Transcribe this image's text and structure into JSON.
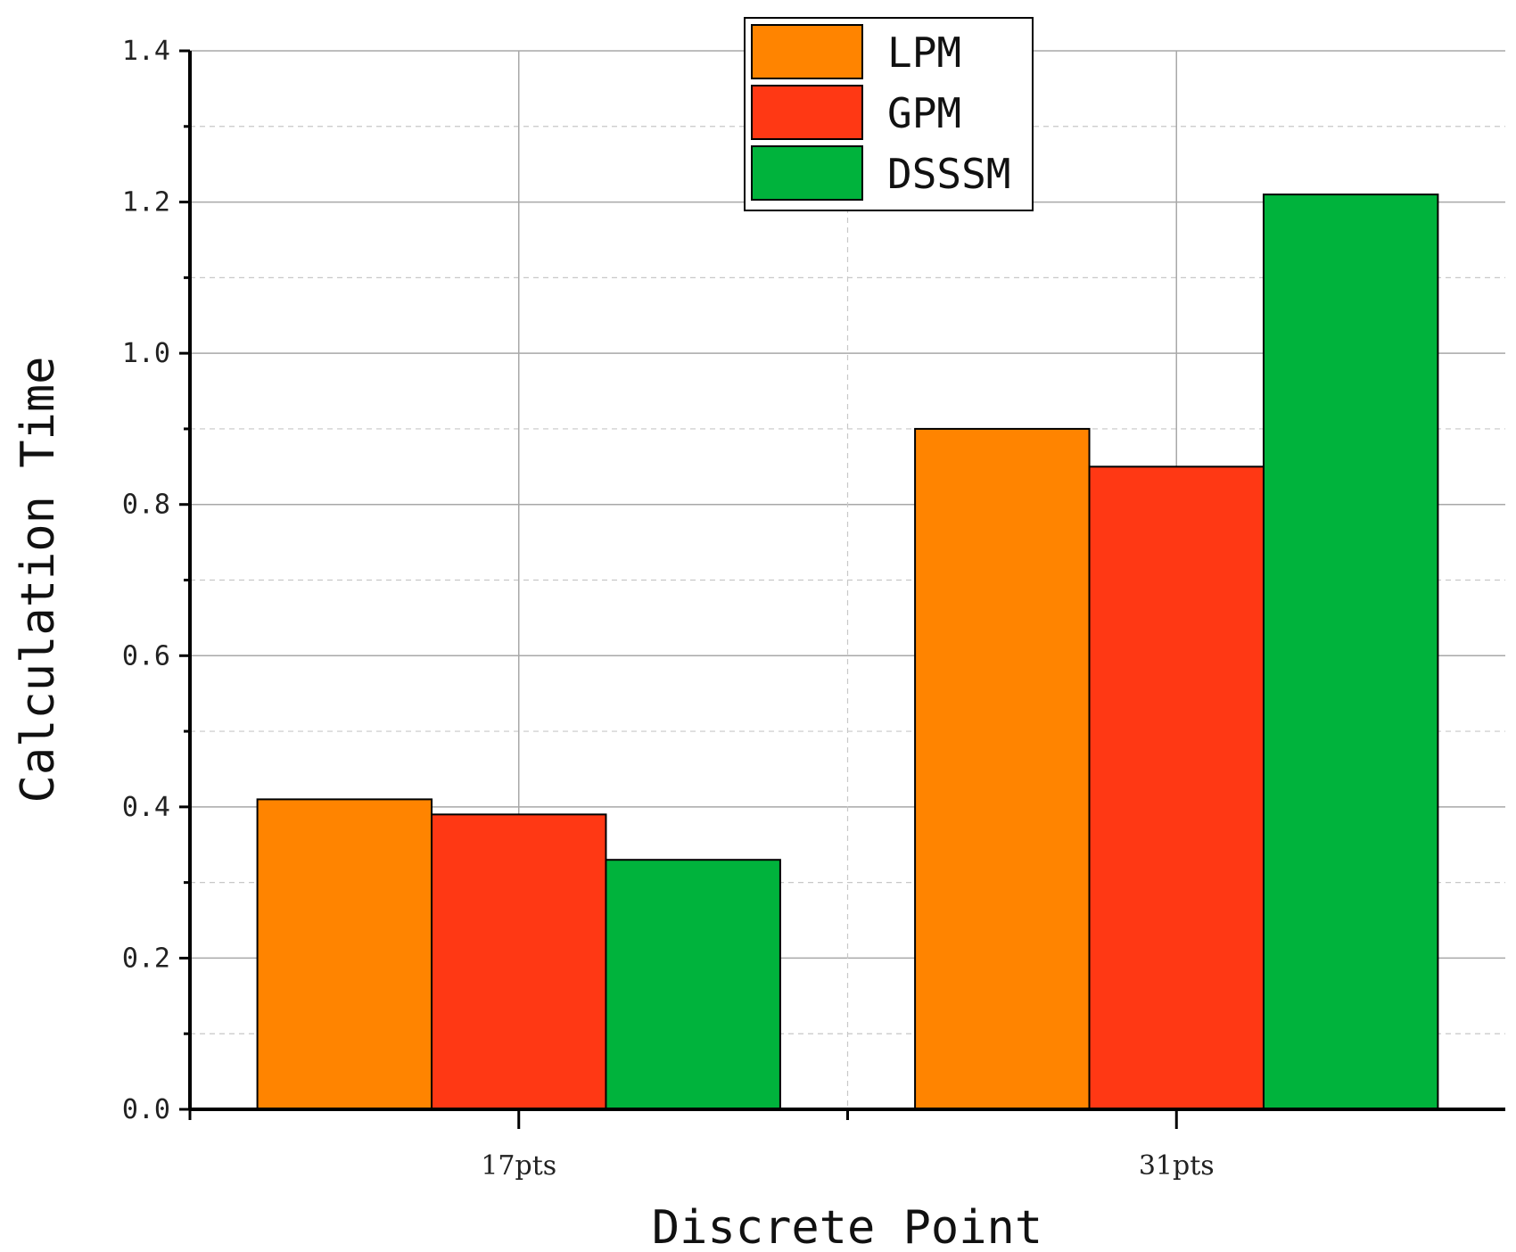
{
  "chart_data": {
    "type": "bar",
    "title": "",
    "xlabel": "Discrete Point",
    "ylabel": "Calculation Time",
    "categories": [
      "17pts",
      "31pts"
    ],
    "series": [
      {
        "name": "LPM",
        "color": "#ff8400",
        "values": [
          0.41,
          0.9
        ]
      },
      {
        "name": "GPM",
        "color": "#ff3814",
        "values": [
          0.39,
          0.85
        ]
      },
      {
        "name": "DSSSM",
        "color": "#00b33c",
        "values": [
          0.33,
          1.21
        ]
      }
    ],
    "ylim": [
      0,
      1.4
    ],
    "yticks": [
      "0.0",
      "0.2",
      "0.4",
      "0.6",
      "0.8",
      "1.0",
      "1.2",
      "1.4"
    ],
    "grid": true,
    "legend_position": "top-center"
  }
}
